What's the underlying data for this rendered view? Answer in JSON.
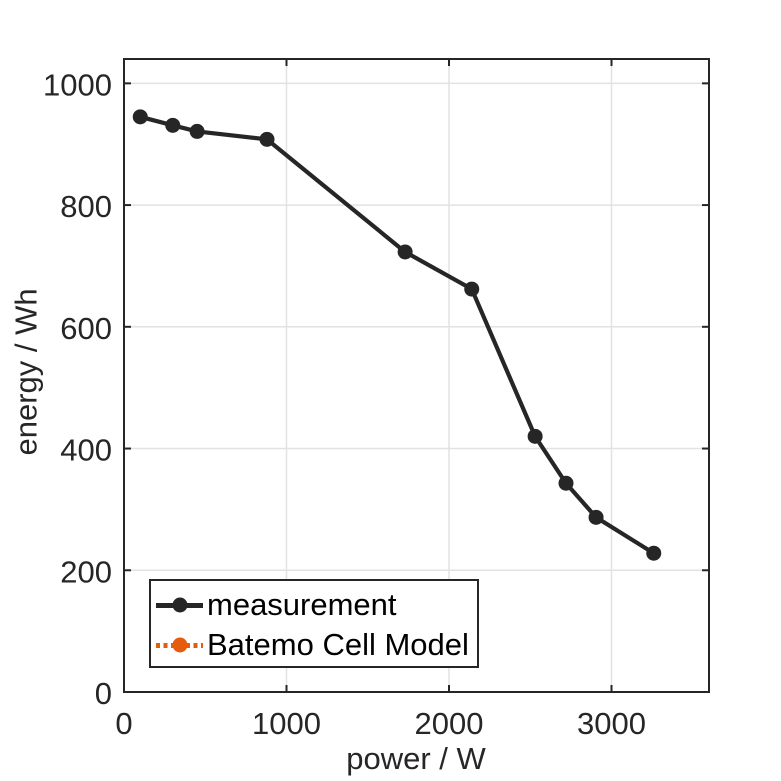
{
  "style": {
    "background": "#ffffff",
    "axis_color": "#262626",
    "grid_color": "#e2e2e2",
    "tick_label_color": "#262626",
    "measurement_color": "#262626",
    "model_color": "#e65c0f",
    "legend_border_color": "#262626",
    "legend_text_color": "#000000"
  },
  "chart_data": {
    "type": "line",
    "title": "",
    "xlabel": "power / W",
    "ylabel": "energy / Wh",
    "xlim": [
      0,
      3600
    ],
    "ylim": [
      0,
      1040
    ],
    "xticks": [
      0,
      1000,
      2000,
      3000
    ],
    "yticks": [
      0,
      200,
      400,
      600,
      800,
      1000
    ],
    "grid": true,
    "legend_position": "inside-bottom-left",
    "series": [
      {
        "name": "measurement",
        "color": "#262626",
        "line_style": "solid",
        "marker": "filled-circle",
        "points": [
          [
            100,
            945
          ],
          [
            300,
            931
          ],
          [
            450,
            921
          ],
          [
            880,
            908
          ],
          [
            1730,
            723
          ],
          [
            2140,
            662
          ],
          [
            2530,
            420
          ],
          [
            2720,
            343
          ],
          [
            2905,
            287
          ],
          [
            3260,
            228
          ]
        ]
      },
      {
        "name": "Batemo Cell Model",
        "color": "#e65c0f",
        "line_style": "dotted",
        "marker": "filled-circle",
        "points": []
      }
    ]
  }
}
